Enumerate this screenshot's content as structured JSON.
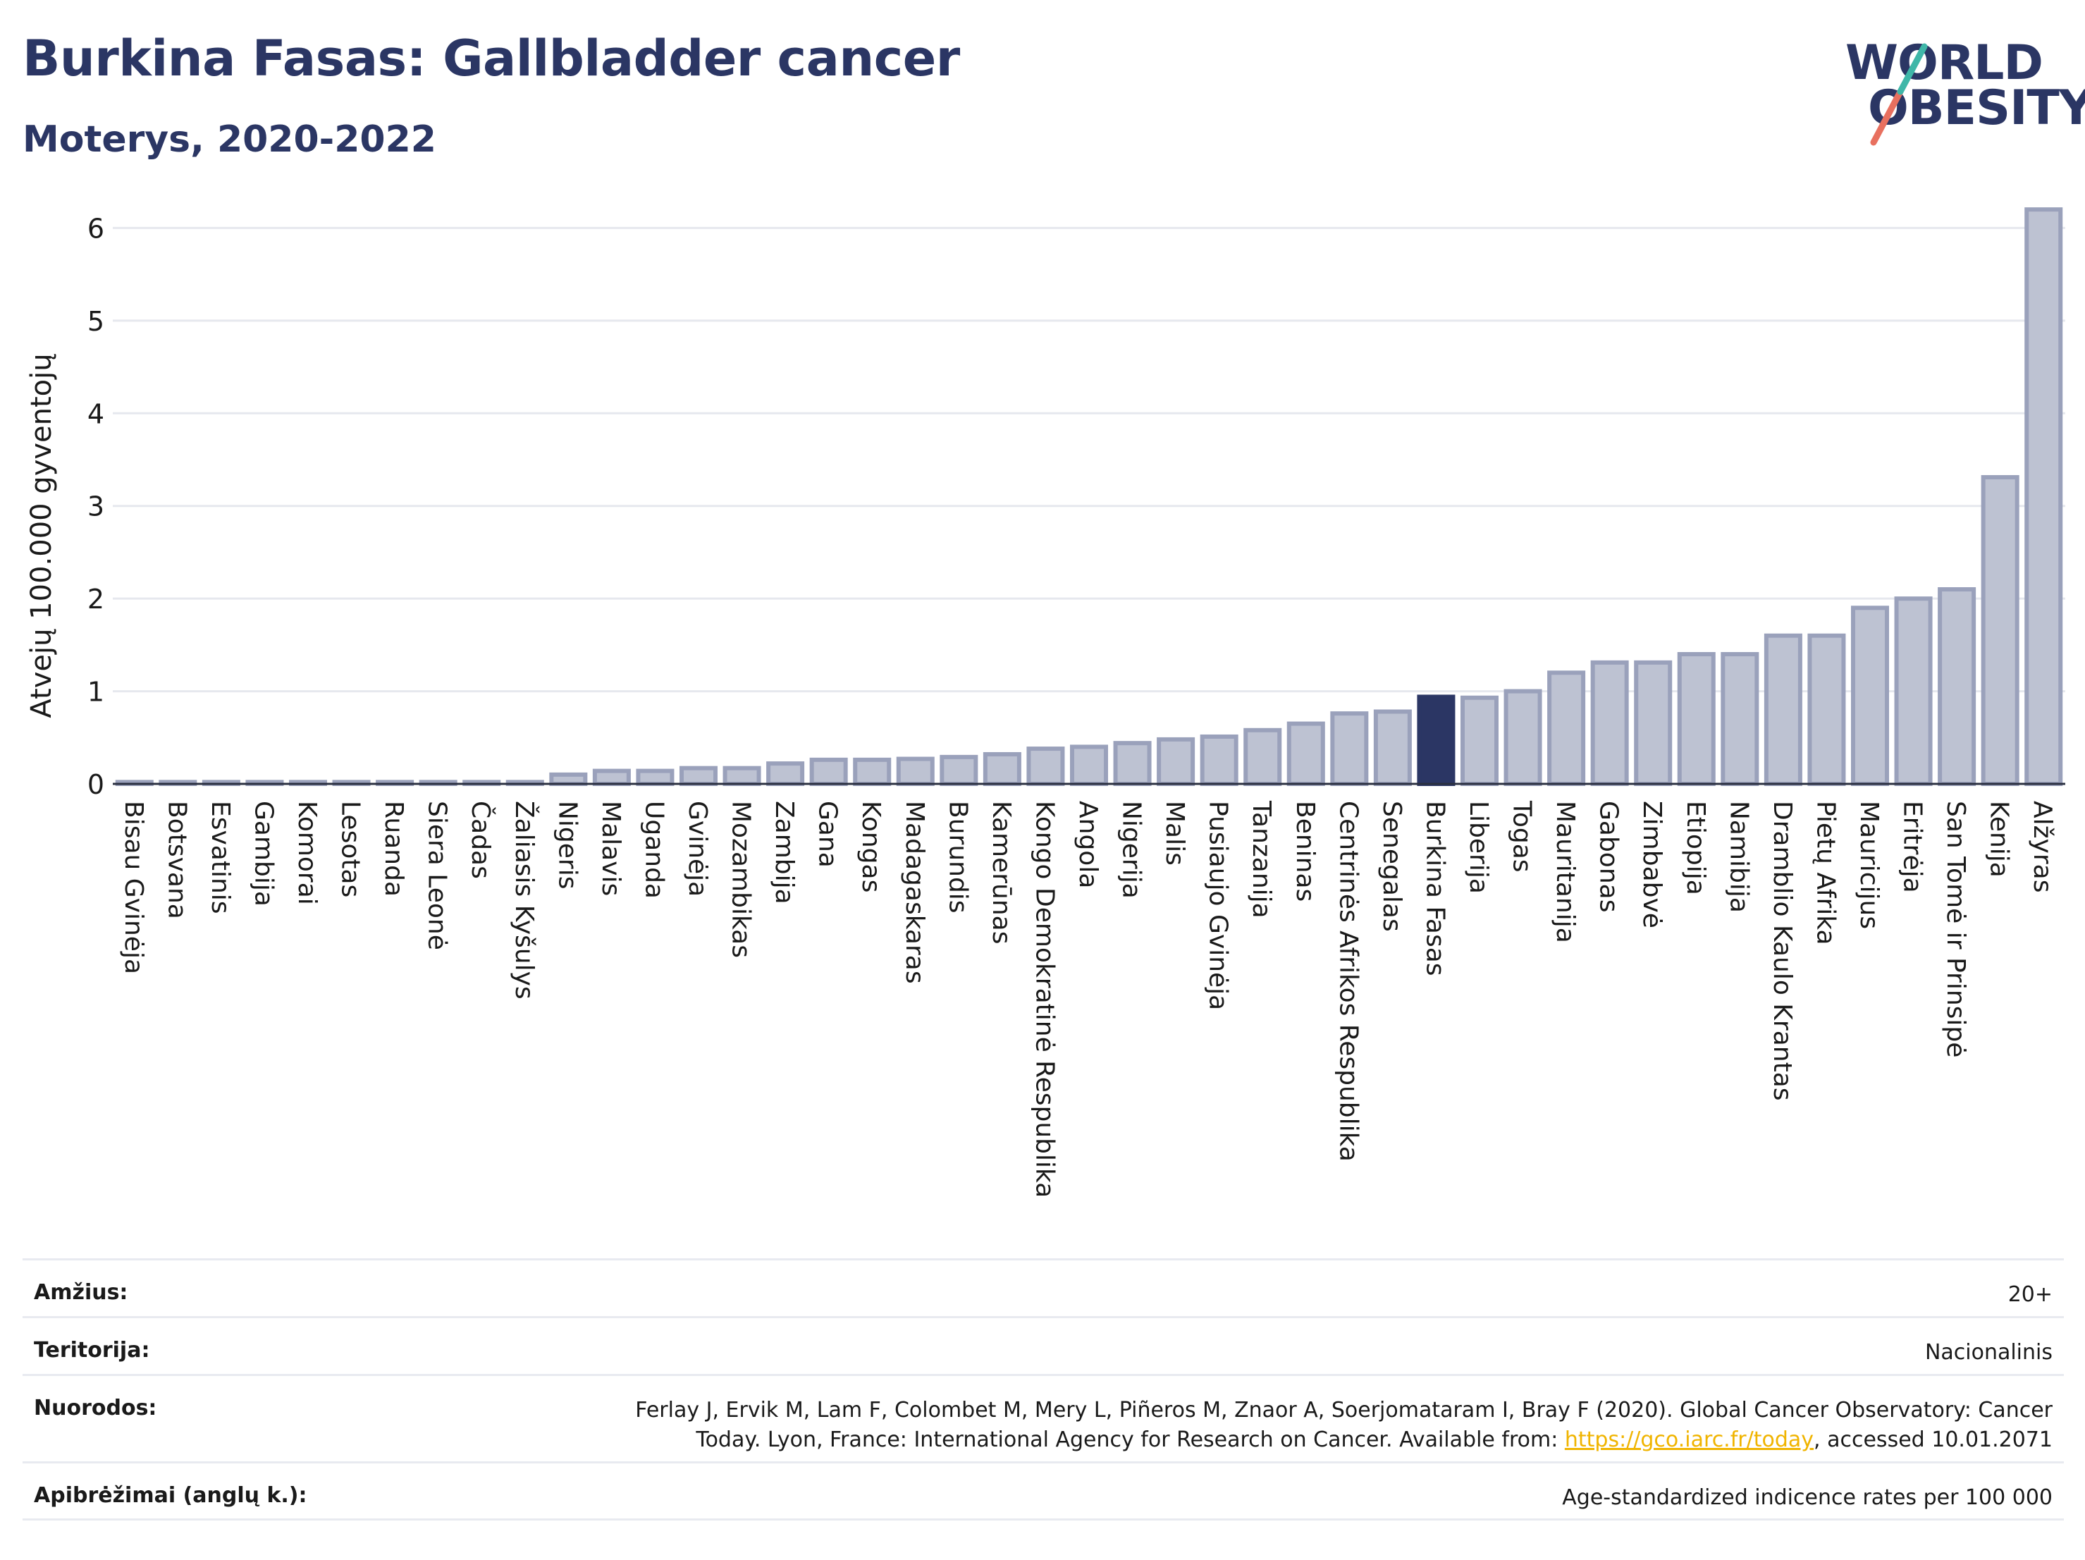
{
  "title": "Burkina Fasas: Gallbladder cancer",
  "subtitle": "Moterys, 2020-2022",
  "logo": {
    "line1": "WORLD",
    "line2": "OBESITY"
  },
  "colors": {
    "highlight": "#2b3664",
    "bar_fill": "#bdc2d2",
    "bar_edge": "#9aa1bb",
    "grid": "#e6e8ee",
    "link": "#f0b400"
  },
  "chart_data": {
    "type": "bar",
    "ylabel": "Atvejų 100.000 gyventojų",
    "ylim": [
      0,
      6.3
    ],
    "yticks": [
      0,
      1,
      2,
      3,
      4,
      5,
      6
    ],
    "grid": true,
    "highlight": "Burkina Fasas",
    "categories": [
      "Bisau Gvinėja",
      "Botsvana",
      "Esvatinis",
      "Gambija",
      "Komorai",
      "Lesotas",
      "Ruanda",
      "Siera Leonė",
      "Čadas",
      "Žaliasis Kyšulys",
      "Nigeris",
      "Malavis",
      "Uganda",
      "Gvinėja",
      "Mozambikas",
      "Zambija",
      "Gana",
      "Kongas",
      "Madagaskaras",
      "Burundis",
      "Kamerūnas",
      "Kongo Demokratinė Respublika",
      "Angola",
      "Nigerija",
      "Malis",
      "Pusiaujo Gvinėja",
      "Tanzanija",
      "Beninas",
      "Centrinės Afrikos Respublika",
      "Senegalas",
      "Burkina Fasas",
      "Liberija",
      "Togas",
      "Mauritanija",
      "Gabonas",
      "Zimbabvė",
      "Etiopija",
      "Namibija",
      "Dramblio Kaulo Krantas",
      "Pietų Afrika",
      "Mauricijus",
      "Eritrėja",
      "San Tomė ir Prinsipė",
      "Kenija",
      "Alžyras"
    ],
    "values": [
      0.02,
      0.02,
      0.02,
      0.02,
      0.02,
      0.02,
      0.02,
      0.02,
      0.02,
      0.02,
      0.1,
      0.14,
      0.14,
      0.17,
      0.17,
      0.22,
      0.26,
      0.26,
      0.27,
      0.29,
      0.32,
      0.38,
      0.4,
      0.44,
      0.48,
      0.51,
      0.58,
      0.65,
      0.76,
      0.78,
      0.94,
      0.93,
      1.0,
      1.2,
      1.31,
      1.31,
      1.4,
      1.4,
      1.6,
      1.6,
      1.9,
      2.0,
      2.1,
      3.31,
      6.2
    ]
  },
  "meta": {
    "age_label": "Amžius:",
    "age_value": "20+",
    "territory_label": "Teritorija:",
    "territory_value": "Nacionalinis",
    "refs_label": "Nuorodos:",
    "refs_line1": "Ferlay J, Ervik M, Lam F, Colombet M, Mery L, Piñeros M, Znaor A, Soerjomataram I, Bray F (2020). Global Cancer Observatory: Cancer",
    "refs_line2_pre": "Today. Lyon, France: International Agency for Research on Cancer. Available from: ",
    "refs_link": "https://gco.iarc.fr/today",
    "refs_line2_post": ", accessed 10.01.2071",
    "defs_label": "Apibrėžimai (anglų k.):",
    "defs_value": "Age-standardized indicence rates per 100 000"
  }
}
